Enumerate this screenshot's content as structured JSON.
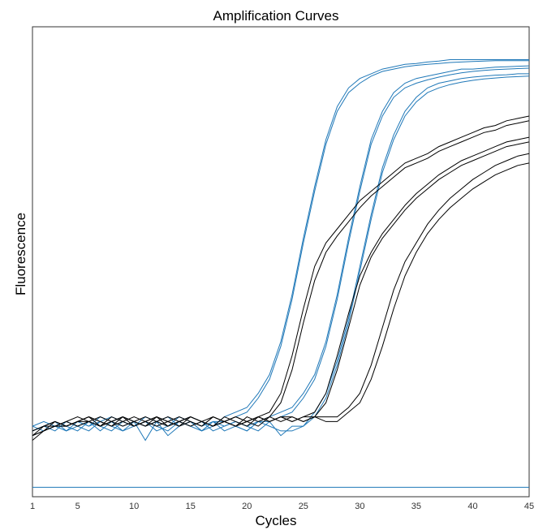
{
  "chart_data": {
    "type": "line",
    "title": "Amplification Curves",
    "xlabel": "Cycles",
    "ylabel": "Fluorescence",
    "xlim": [
      1,
      45
    ],
    "ylim": [
      0,
      1
    ],
    "y_tick_labels_shown": false,
    "grid": false,
    "legend": "none",
    "x_ticks": [
      1,
      5,
      10,
      15,
      20,
      25,
      30,
      35,
      40,
      45
    ],
    "colors": {
      "blue": "#1f78b8",
      "black": "#000000"
    },
    "x": [
      1,
      2,
      3,
      4,
      5,
      6,
      7,
      8,
      9,
      10,
      11,
      12,
      13,
      14,
      15,
      16,
      17,
      18,
      19,
      20,
      21,
      22,
      23,
      24,
      25,
      26,
      27,
      28,
      29,
      30,
      31,
      32,
      33,
      34,
      35,
      36,
      37,
      38,
      39,
      40,
      41,
      42,
      43,
      44,
      45
    ],
    "series": [
      {
        "color": "blue",
        "values": [
          0.13,
          0.14,
          0.15,
          0.15,
          0.16,
          0.15,
          0.16,
          0.17,
          0.16,
          0.15,
          0.17,
          0.16,
          0.15,
          0.16,
          0.17,
          0.16,
          0.15,
          0.17,
          0.18,
          0.19,
          0.22,
          0.26,
          0.33,
          0.43,
          0.55,
          0.66,
          0.76,
          0.83,
          0.87,
          0.89,
          0.9,
          0.91,
          0.915,
          0.92,
          0.922,
          0.925,
          0.927,
          0.93,
          0.93,
          0.93,
          0.93,
          0.93,
          0.93,
          0.93,
          0.93
        ]
      },
      {
        "color": "blue",
        "values": [
          0.14,
          0.15,
          0.14,
          0.16,
          0.15,
          0.16,
          0.14,
          0.16,
          0.17,
          0.16,
          0.15,
          0.16,
          0.17,
          0.15,
          0.16,
          0.14,
          0.16,
          0.16,
          0.17,
          0.18,
          0.21,
          0.25,
          0.32,
          0.42,
          0.54,
          0.65,
          0.75,
          0.82,
          0.86,
          0.88,
          0.895,
          0.905,
          0.91,
          0.915,
          0.918,
          0.92,
          0.922,
          0.924,
          0.925,
          0.926,
          0.927,
          0.928,
          0.928,
          0.928,
          0.928
        ]
      },
      {
        "color": "blue",
        "values": [
          0.15,
          0.16,
          0.15,
          0.14,
          0.16,
          0.15,
          0.17,
          0.16,
          0.15,
          0.16,
          0.12,
          0.16,
          0.15,
          0.17,
          0.16,
          0.14,
          0.15,
          0.16,
          0.15,
          0.14,
          0.16,
          0.17,
          0.18,
          0.19,
          0.22,
          0.26,
          0.33,
          0.43,
          0.55,
          0.66,
          0.76,
          0.82,
          0.86,
          0.88,
          0.89,
          0.895,
          0.9,
          0.905,
          0.91,
          0.91,
          0.912,
          0.914,
          0.915,
          0.916,
          0.917
        ]
      },
      {
        "color": "blue",
        "values": [
          0.14,
          0.15,
          0.16,
          0.15,
          0.14,
          0.16,
          0.15,
          0.16,
          0.14,
          0.15,
          0.16,
          0.15,
          0.14,
          0.16,
          0.15,
          0.16,
          0.14,
          0.15,
          0.16,
          0.15,
          0.16,
          0.16,
          0.17,
          0.18,
          0.21,
          0.25,
          0.32,
          0.42,
          0.54,
          0.65,
          0.75,
          0.81,
          0.85,
          0.87,
          0.88,
          0.887,
          0.893,
          0.898,
          0.902,
          0.905,
          0.907,
          0.909,
          0.91,
          0.911,
          0.912
        ]
      },
      {
        "color": "blue",
        "values": [
          0.14,
          0.15,
          0.16,
          0.14,
          0.15,
          0.16,
          0.15,
          0.14,
          0.16,
          0.15,
          0.16,
          0.14,
          0.15,
          0.16,
          0.15,
          0.14,
          0.16,
          0.15,
          0.16,
          0.15,
          0.14,
          0.16,
          0.13,
          0.15,
          0.15,
          0.18,
          0.22,
          0.29,
          0.38,
          0.49,
          0.6,
          0.7,
          0.77,
          0.82,
          0.85,
          0.87,
          0.88,
          0.885,
          0.89,
          0.893,
          0.895,
          0.897,
          0.898,
          0.9,
          0.9
        ]
      },
      {
        "color": "blue",
        "values": [
          0.15,
          0.14,
          0.15,
          0.16,
          0.15,
          0.14,
          0.16,
          0.15,
          0.14,
          0.16,
          0.15,
          0.16,
          0.13,
          0.15,
          0.16,
          0.15,
          0.16,
          0.14,
          0.15,
          0.14,
          0.16,
          0.15,
          0.14,
          0.14,
          0.15,
          0.17,
          0.21,
          0.28,
          0.37,
          0.48,
          0.59,
          0.69,
          0.76,
          0.81,
          0.84,
          0.86,
          0.87,
          0.877,
          0.882,
          0.886,
          0.889,
          0.891,
          0.893,
          0.894,
          0.895
        ]
      },
      {
        "color": "black",
        "values": [
          0.13,
          0.14,
          0.15,
          0.16,
          0.15,
          0.16,
          0.17,
          0.16,
          0.15,
          0.16,
          0.17,
          0.16,
          0.15,
          0.16,
          0.17,
          0.16,
          0.15,
          0.16,
          0.17,
          0.16,
          0.17,
          0.18,
          0.22,
          0.3,
          0.4,
          0.49,
          0.54,
          0.57,
          0.6,
          0.63,
          0.65,
          0.67,
          0.69,
          0.71,
          0.72,
          0.73,
          0.745,
          0.755,
          0.765,
          0.775,
          0.785,
          0.79,
          0.8,
          0.805,
          0.81
        ]
      },
      {
        "color": "black",
        "values": [
          0.12,
          0.14,
          0.15,
          0.15,
          0.16,
          0.17,
          0.15,
          0.16,
          0.17,
          0.16,
          0.15,
          0.17,
          0.16,
          0.15,
          0.16,
          0.15,
          0.17,
          0.16,
          0.15,
          0.17,
          0.16,
          0.17,
          0.2,
          0.27,
          0.37,
          0.46,
          0.52,
          0.555,
          0.585,
          0.615,
          0.64,
          0.66,
          0.68,
          0.7,
          0.71,
          0.72,
          0.735,
          0.745,
          0.755,
          0.765,
          0.775,
          0.78,
          0.79,
          0.795,
          0.8
        ]
      },
      {
        "color": "black",
        "values": [
          0.14,
          0.15,
          0.16,
          0.15,
          0.16,
          0.17,
          0.16,
          0.15,
          0.17,
          0.16,
          0.15,
          0.16,
          0.17,
          0.16,
          0.15,
          0.16,
          0.17,
          0.16,
          0.15,
          0.16,
          0.17,
          0.16,
          0.17,
          0.16,
          0.17,
          0.18,
          0.22,
          0.3,
          0.39,
          0.47,
          0.52,
          0.56,
          0.59,
          0.62,
          0.645,
          0.665,
          0.685,
          0.7,
          0.715,
          0.725,
          0.735,
          0.745,
          0.755,
          0.76,
          0.765
        ]
      },
      {
        "color": "black",
        "values": [
          0.13,
          0.15,
          0.15,
          0.16,
          0.17,
          0.16,
          0.15,
          0.16,
          0.17,
          0.15,
          0.16,
          0.17,
          0.16,
          0.15,
          0.17,
          0.16,
          0.15,
          0.17,
          0.16,
          0.15,
          0.17,
          0.16,
          0.17,
          0.17,
          0.16,
          0.17,
          0.2,
          0.27,
          0.36,
          0.45,
          0.51,
          0.55,
          0.58,
          0.61,
          0.635,
          0.655,
          0.675,
          0.69,
          0.705,
          0.715,
          0.725,
          0.735,
          0.745,
          0.75,
          0.755
        ]
      },
      {
        "color": "black",
        "values": [
          0.14,
          0.15,
          0.16,
          0.15,
          0.16,
          0.17,
          0.16,
          0.15,
          0.16,
          0.17,
          0.16,
          0.15,
          0.16,
          0.17,
          0.16,
          0.15,
          0.17,
          0.16,
          0.15,
          0.16,
          0.17,
          0.16,
          0.17,
          0.16,
          0.17,
          0.17,
          0.17,
          0.17,
          0.19,
          0.22,
          0.28,
          0.36,
          0.44,
          0.5,
          0.54,
          0.58,
          0.61,
          0.635,
          0.655,
          0.675,
          0.69,
          0.705,
          0.715,
          0.725,
          0.73
        ]
      },
      {
        "color": "black",
        "values": [
          0.13,
          0.14,
          0.16,
          0.15,
          0.16,
          0.16,
          0.15,
          0.17,
          0.16,
          0.15,
          0.16,
          0.17,
          0.15,
          0.16,
          0.17,
          0.16,
          0.15,
          0.16,
          0.17,
          0.16,
          0.15,
          0.17,
          0.16,
          0.17,
          0.16,
          0.17,
          0.16,
          0.16,
          0.18,
          0.2,
          0.25,
          0.32,
          0.4,
          0.47,
          0.52,
          0.56,
          0.59,
          0.615,
          0.635,
          0.655,
          0.67,
          0.685,
          0.695,
          0.705,
          0.71
        ]
      },
      {
        "color": "blue",
        "values": [
          0.02,
          0.02,
          0.02,
          0.02,
          0.02,
          0.02,
          0.02,
          0.02,
          0.02,
          0.02,
          0.02,
          0.02,
          0.02,
          0.02,
          0.02,
          0.02,
          0.02,
          0.02,
          0.02,
          0.02,
          0.02,
          0.02,
          0.02,
          0.02,
          0.02,
          0.02,
          0.02,
          0.02,
          0.02,
          0.02,
          0.02,
          0.02,
          0.02,
          0.02,
          0.02,
          0.02,
          0.02,
          0.02,
          0.02,
          0.02,
          0.02,
          0.02,
          0.02,
          0.02,
          0.02
        ]
      }
    ]
  }
}
